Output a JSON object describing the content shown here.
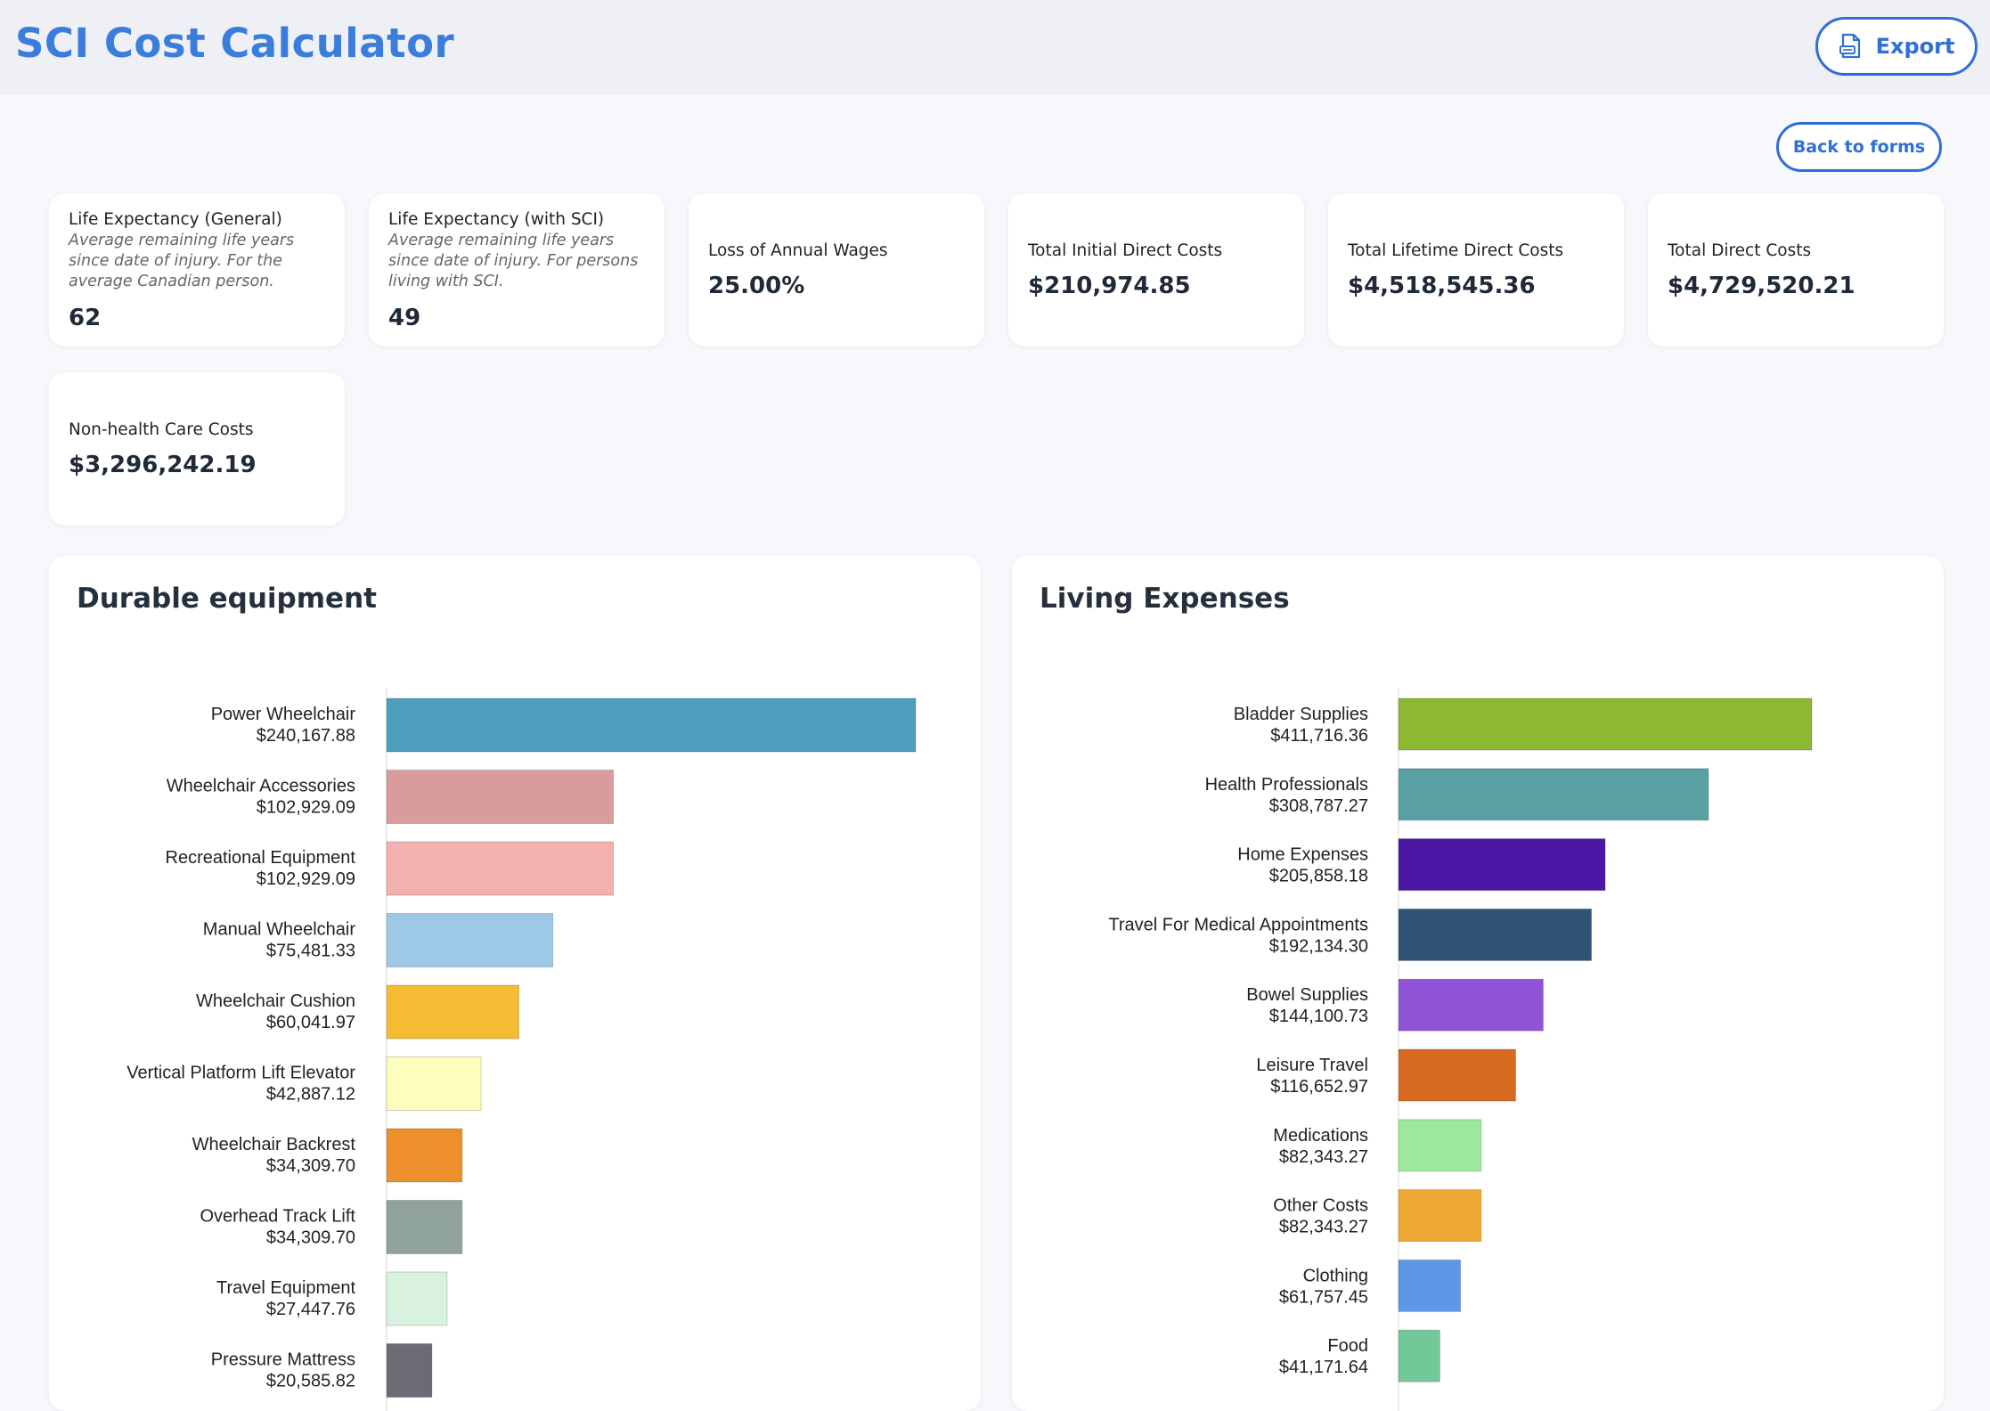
{
  "app_title": "SCI Cost Calculator",
  "export_label": "Export",
  "back_label": "Back to forms",
  "summary_cards": [
    {
      "label": "Life Expectancy (General)",
      "description": "Average remaining life years since date of injury. For the average Canadian person.",
      "value": "62"
    },
    {
      "label": "Life Expectancy (with SCI)",
      "description": "Average remaining life years since date of injury. For persons living with SCI.",
      "value": "49"
    },
    {
      "label": "Loss of Annual Wages",
      "value": "25.00%"
    },
    {
      "label": "Total Initial Direct Costs",
      "value": "$210,974.85"
    },
    {
      "label": "Total Lifetime Direct Costs",
      "value": "$4,518,545.36"
    },
    {
      "label": "Total Direct Costs",
      "value": "$4,729,520.21"
    },
    {
      "label": "Non-health Care Costs",
      "value": "$3,296,242.19"
    }
  ],
  "panels": {
    "durable": {
      "title": "Durable equipment"
    },
    "living": {
      "title": "Living Expenses"
    }
  },
  "chart_data": [
    {
      "type": "bar",
      "orientation": "horizontal",
      "title": "Durable equipment",
      "categories": [
        "Power Wheelchair",
        "Wheelchair Accessories",
        "Recreational Equipment",
        "Manual Wheelchair",
        "Wheelchair Cushion",
        "Vertical Platform Lift Elevator",
        "Wheelchair Backrest",
        "Overhead Track Lift",
        "Travel Equipment",
        "Pressure Mattress"
      ],
      "value_labels": [
        "$240,167.88",
        "$102,929.09",
        "$102,929.09",
        "$75,481.33",
        "$60,041.97",
        "$42,887.12",
        "$34,309.70",
        "$34,309.70",
        "$27,447.76",
        "$20,585.82"
      ],
      "values": [
        240167.88,
        102929.09,
        102929.09,
        75481.33,
        60041.97,
        42887.12,
        34309.7,
        34309.7,
        27447.76,
        20585.82
      ],
      "colors": [
        "#4e9fbd",
        "#da9b9d",
        "#f2b1af",
        "#9ec9e6",
        "#f4bb33",
        "#fdfdbc",
        "#ed8f2c",
        "#8fa39b",
        "#d9f2e0",
        "#6c6a73"
      ],
      "xlim": [
        0,
        240167.88
      ]
    },
    {
      "type": "bar",
      "orientation": "horizontal",
      "title": "Living Expenses",
      "categories": [
        "Bladder Supplies",
        "Health Professionals",
        "Home Expenses",
        "Travel For Medical Appointments",
        "Bowel Supplies",
        "Leisure Travel",
        "Medications",
        "Other Costs",
        "Clothing",
        "Food"
      ],
      "value_labels": [
        "$411,716.36",
        "$308,787.27",
        "$205,858.18",
        "$192,134.30",
        "$144,100.73",
        "$116,652.97",
        "$82,343.27",
        "$82,343.27",
        "$61,757.45",
        "$41,171.64"
      ],
      "values": [
        411716.36,
        308787.27,
        205858.18,
        192134.3,
        144100.73,
        116652.97,
        82343.27,
        82343.27,
        61757.45,
        41171.64
      ],
      "colors": [
        "#8cb832",
        "#5aa1a3",
        "#4d17a6",
        "#2f5474",
        "#9153d6",
        "#d96a22",
        "#9de99b",
        "#eca832",
        "#5d97e7",
        "#73c89a"
      ],
      "xlim": [
        0,
        411716.36
      ]
    }
  ]
}
